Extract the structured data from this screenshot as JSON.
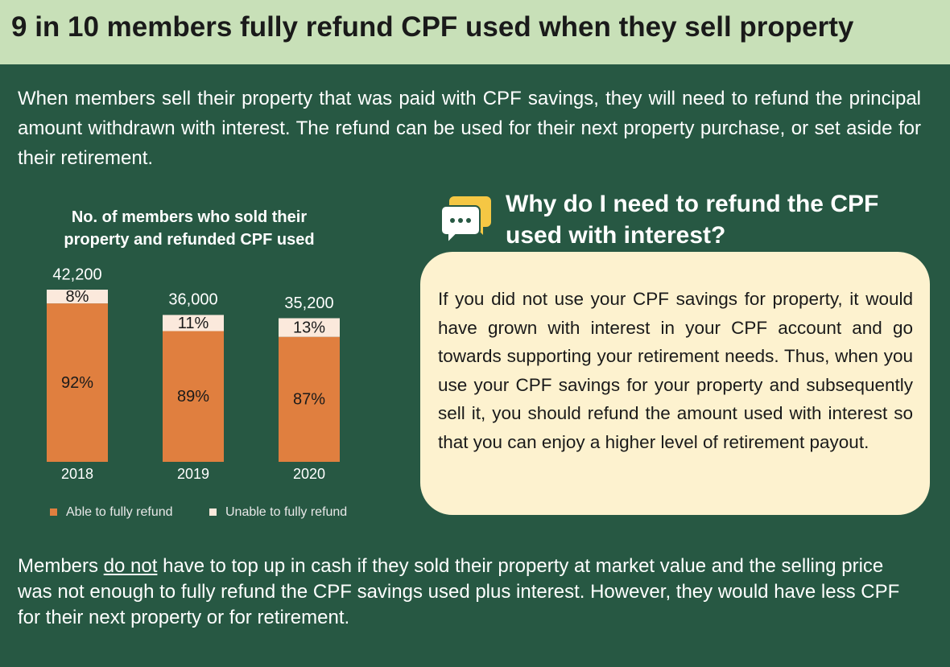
{
  "header": {
    "title": "9 in 10 members fully refund CPF used when they sell property"
  },
  "intro": "When members sell their property that was paid with CPF savings, they will need to refund the principal amount withdrawn with interest. The refund can be used for their next property purchase, or set aside for their retirement.",
  "chart_data": {
    "type": "bar",
    "stacked": true,
    "title": "No. of members who sold their property and refunded CPF used",
    "categories": [
      "2018",
      "2019",
      "2020"
    ],
    "series": [
      {
        "name": "Able to fully refund",
        "color": "#e07f3f",
        "values": [
          92,
          89,
          87
        ],
        "value_labels": [
          "92%",
          "89%",
          "87%"
        ]
      },
      {
        "name": "Unable to fully refund",
        "color": "#fbe9dc",
        "values": [
          8,
          11,
          13
        ],
        "value_labels": [
          "8%",
          "11%",
          "13%"
        ]
      }
    ],
    "totals": {
      "values": [
        42200,
        36000,
        35200
      ],
      "value_labels": [
        "42,200",
        "36,000",
        "35,200"
      ]
    }
  },
  "callout": {
    "title": "Why do I need to refund the CPF used with interest?",
    "body": "If you did not use your CPF savings for property, it would have grown with interest in your CPF account and go towards supporting your retirement needs. Thus, when you use your CPF savings for your property and subsequently sell it, you should refund the amount used with interest so that you can enjoy a higher level of retirement payout."
  },
  "footer": {
    "before": "Members ",
    "emphasis": "do not",
    "after": " have to top up in cash if they sold their property at market value and the selling price was not enough to fully refund the CPF savings used plus interest. However, they would have less CPF for their next property or for retirement."
  }
}
